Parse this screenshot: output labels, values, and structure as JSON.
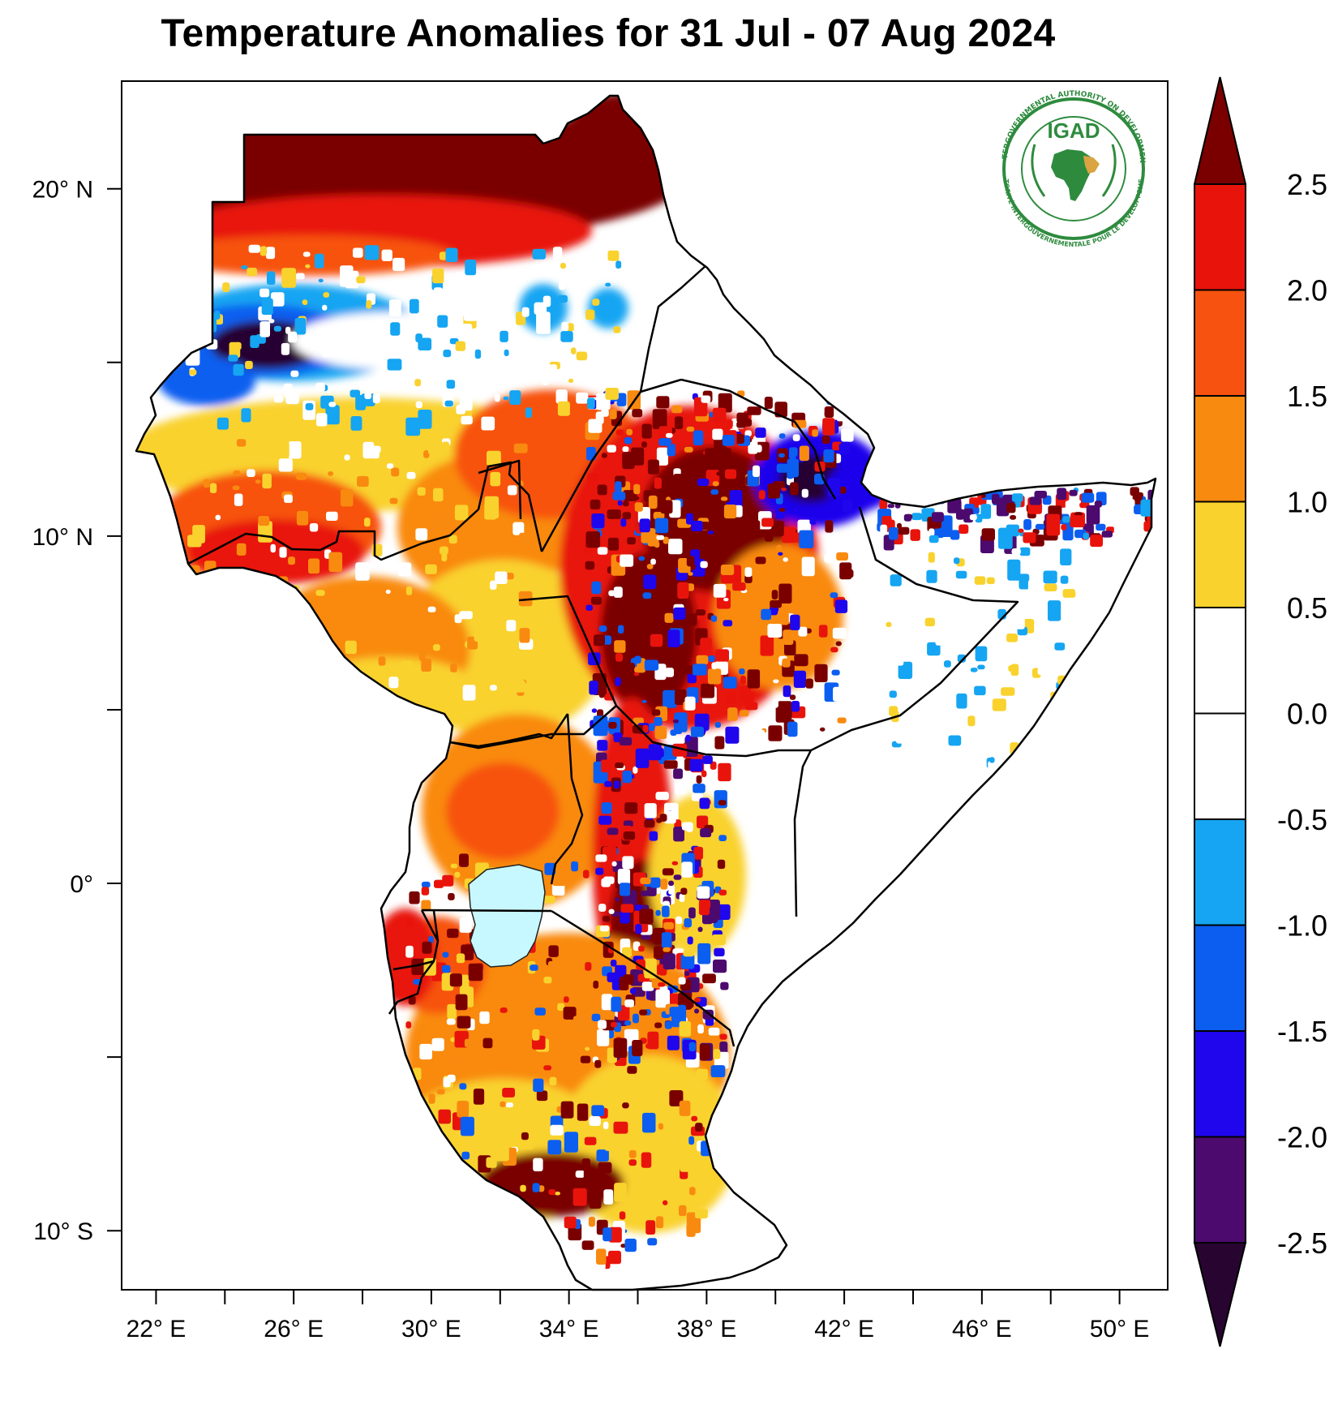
{
  "title": "Temperature Anomalies for 31 Jul - 07 Aug 2024",
  "map": {
    "lon_range": [
      21,
      51.4
    ],
    "lat_range": [
      -11.7,
      23.1
    ],
    "lon_ticks": [
      {
        "value": 22,
        "label": "22°E"
      },
      {
        "value": 26,
        "label": "26°E"
      },
      {
        "value": 30,
        "label": "30°E"
      },
      {
        "value": 34,
        "label": "34°E"
      },
      {
        "value": 38,
        "label": "38°E"
      },
      {
        "value": 42,
        "label": "42°E"
      },
      {
        "value": 46,
        "label": "46°E"
      },
      {
        "value": 50,
        "label": "50°E"
      }
    ],
    "lon_minor_ticks": [
      24,
      28,
      32,
      36,
      40,
      44,
      48
    ],
    "lat_ticks": [
      {
        "value": 20,
        "label": "20°N"
      },
      {
        "value": 10,
        "label": "10°N"
      },
      {
        "value": 0,
        "label": "0°"
      },
      {
        "value": -10,
        "label": "10°S"
      }
    ],
    "lat_minor_ticks": [
      15,
      5,
      -5
    ],
    "lake_color": "#c8f8ff",
    "outline_color": "#000000"
  },
  "logo": {
    "text": "IGAD",
    "ring_text_top": "INTERGOVERNMENTAL AUTHORITY ON DEVELOPMENT",
    "ring_text_bottom": "AUTORITÉ INTERGOUVERNEMENTALE POUR LE DÉVELOPPEMENT",
    "green": "#2e8b3e",
    "gold": "#d9a441"
  },
  "colorbar": {
    "labels": [
      "2.5",
      "2.0",
      "1.5",
      "1.0",
      "0.5",
      "0.0",
      "-0.5",
      "-1.0",
      "-1.5",
      "-2.0",
      "-2.5"
    ],
    "colors": [
      "#7a0000",
      "#e8140c",
      "#f7520f",
      "#f98a10",
      "#f9d22e",
      "#ffffff",
      "#ffffff",
      "#15a5f2",
      "#0b5ef0",
      "#1f06ec",
      "#4c0a6e",
      "#280530"
    ]
  }
}
